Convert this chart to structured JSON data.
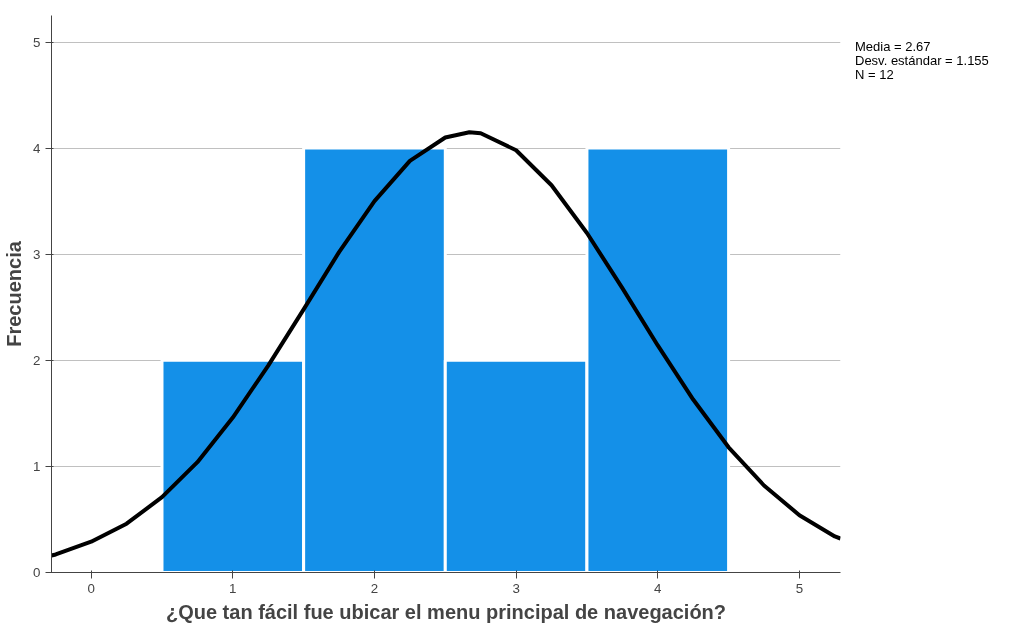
{
  "chart_data": {
    "type": "histogram",
    "xlabel": "¿Que tan fácil fue ubicar el menu principal de navegación?",
    "ylabel": "Frecuencia",
    "bins": [
      0.5,
      1.5,
      2.5,
      3.5,
      4.5
    ],
    "values": [
      2,
      4,
      2,
      4
    ],
    "color": "#1490e8",
    "xlim": [
      -0.28,
      5.29
    ],
    "ylim": [
      0,
      5.25
    ],
    "xticks": [
      0,
      1,
      2,
      3,
      4,
      5
    ],
    "yticks": [
      0,
      1,
      2,
      3,
      4,
      5
    ],
    "grid": "y",
    "annotations": [
      "Media = 2.67",
      "Desv. estándar = 1.155",
      "N = 12"
    ],
    "series": [
      {
        "type": "line",
        "color": "#000000",
        "x": [
          -0.28,
          -0.25,
          0,
          0.25,
          0.5,
          0.75,
          1,
          1.25,
          1.5,
          1.75,
          2,
          2.25,
          2.5,
          2.67,
          2.75,
          3,
          3.25,
          3.5,
          3.75,
          4,
          4.25,
          4.5,
          4.75,
          5,
          5.25,
          5.29
        ],
        "values": [
          0.16,
          0.17,
          0.29,
          0.46,
          0.71,
          1.04,
          1.46,
          1.95,
          2.48,
          3.02,
          3.5,
          3.88,
          4.1,
          4.15,
          4.14,
          3.98,
          3.65,
          3.2,
          2.68,
          2.14,
          1.63,
          1.18,
          0.82,
          0.54,
          0.34,
          0.32
        ]
      }
    ]
  }
}
